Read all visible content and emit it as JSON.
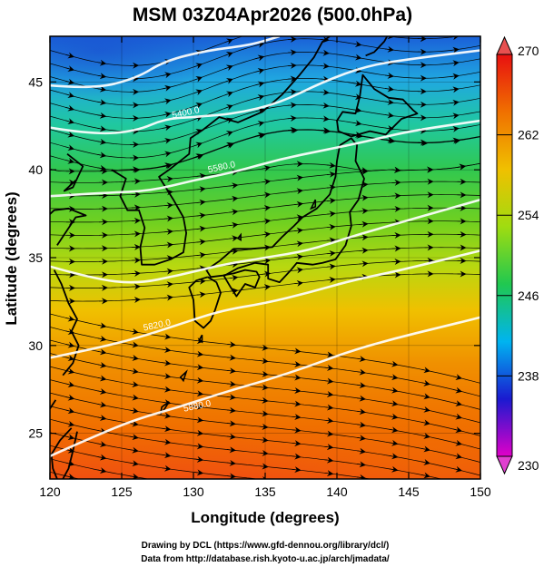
{
  "title": "MSM 03Z04Apr2026 (500.0hPa)",
  "xlabel": "Longitude (degrees)",
  "ylabel": "Latitude  (degrees)",
  "x_ticks": [
    120,
    125,
    130,
    135,
    140,
    145,
    150
  ],
  "y_ticks": [
    25,
    30,
    35,
    40,
    45
  ],
  "x_range": [
    120,
    150
  ],
  "y_range": [
    22.4,
    47.6
  ],
  "colorbar": {
    "ticks": [
      230,
      238,
      246,
      254,
      262,
      270
    ],
    "range": [
      230,
      270
    ],
    "colors": [
      "#e000c8",
      "#1a1ad0",
      "#00b4f0",
      "#20c850",
      "#a0dc10",
      "#f0c000",
      "#f07000",
      "#e81010"
    ]
  },
  "contour_labels": [
    {
      "text": "5400.0",
      "lon": 129.5,
      "lat": 43.1
    },
    {
      "text": "5580.0",
      "lon": 132.0,
      "lat": 40.0
    },
    {
      "text": "5820.0",
      "lon": 127.5,
      "lat": 31.0
    },
    {
      "text": "5880.0",
      "lon": 130.3,
      "lat": 26.4
    }
  ],
  "contours": [
    [
      [
        120,
        44.8
      ],
      [
        123,
        44.6
      ],
      [
        126,
        45.2
      ],
      [
        128,
        46.2
      ],
      [
        131,
        46.8
      ],
      [
        134,
        47.1
      ],
      [
        136,
        47.6
      ]
    ],
    [
      [
        120,
        42.4
      ],
      [
        123,
        42.0
      ],
      [
        126,
        42.2
      ],
      [
        128,
        42.9
      ],
      [
        130,
        43.0
      ],
      [
        133,
        43.2
      ],
      [
        136,
        43.8
      ],
      [
        139,
        45.0
      ],
      [
        142,
        45.9
      ],
      [
        145,
        46.3
      ],
      [
        150,
        46.8
      ]
    ],
    [
      [
        120,
        38.5
      ],
      [
        124,
        38.7
      ],
      [
        127,
        38.8
      ],
      [
        130,
        39.4
      ],
      [
        133,
        39.9
      ],
      [
        136,
        40.6
      ],
      [
        139,
        41.1
      ],
      [
        142,
        41.6
      ],
      [
        145,
        42.2
      ],
      [
        150,
        42.8
      ]
    ],
    [
      [
        120,
        34.5
      ],
      [
        123,
        33.8
      ],
      [
        126,
        33.5
      ],
      [
        129,
        34.0
      ],
      [
        132,
        34.6
      ],
      [
        135,
        35.0
      ],
      [
        138,
        35.4
      ],
      [
        141,
        36.2
      ],
      [
        144,
        36.9
      ],
      [
        147,
        37.6
      ],
      [
        150,
        38.3
      ]
    ],
    [
      [
        120,
        29.3
      ],
      [
        123,
        29.8
      ],
      [
        126,
        30.4
      ],
      [
        129,
        31.2
      ],
      [
        132,
        32.0
      ],
      [
        135,
        32.4
      ],
      [
        138,
        33.0
      ],
      [
        141,
        33.7
      ],
      [
        144,
        34.2
      ],
      [
        147,
        34.8
      ],
      [
        150,
        35.4
      ]
    ],
    [
      [
        120,
        23.7
      ],
      [
        123,
        24.8
      ],
      [
        126,
        25.8
      ],
      [
        129,
        26.5
      ],
      [
        132,
        27.3
      ],
      [
        135,
        28.0
      ],
      [
        138,
        28.8
      ],
      [
        141,
        29.7
      ],
      [
        144,
        30.4
      ],
      [
        147,
        31.0
      ],
      [
        150,
        31.6
      ]
    ]
  ],
  "coastline": [
    [
      [
        140.2,
        41.4
      ],
      [
        141.0,
        41.8
      ],
      [
        141.4,
        41.4
      ],
      [
        141.3,
        40.5
      ],
      [
        141.9,
        39.5
      ],
      [
        141.5,
        38.3
      ],
      [
        140.9,
        37.6
      ],
      [
        141.0,
        36.8
      ],
      [
        140.6,
        35.7
      ],
      [
        139.9,
        34.9
      ],
      [
        139.0,
        34.7
      ],
      [
        138.3,
        34.6
      ],
      [
        137.2,
        34.7
      ],
      [
        136.8,
        34.3
      ],
      [
        136.0,
        33.6
      ],
      [
        135.2,
        33.8
      ],
      [
        135.2,
        34.6
      ],
      [
        134.3,
        34.7
      ],
      [
        133.1,
        34.4
      ],
      [
        132.2,
        34.0
      ],
      [
        131.2,
        33.9
      ],
      [
        130.9,
        34.3
      ],
      [
        131.8,
        34.8
      ],
      [
        132.8,
        35.5
      ],
      [
        134.0,
        35.5
      ],
      [
        135.5,
        35.6
      ],
      [
        136.2,
        36.2
      ],
      [
        137.0,
        36.8
      ],
      [
        137.6,
        37.3
      ],
      [
        138.6,
        37.8
      ],
      [
        139.5,
        38.6
      ],
      [
        139.9,
        39.6
      ],
      [
        140.0,
        40.5
      ],
      [
        140.2,
        41.4
      ]
    ],
    [
      [
        141.0,
        41.9
      ],
      [
        140.1,
        42.2
      ],
      [
        140.0,
        42.8
      ],
      [
        140.4,
        43.3
      ],
      [
        141.3,
        43.2
      ],
      [
        141.6,
        44.2
      ],
      [
        141.8,
        45.4
      ],
      [
        142.6,
        44.6
      ],
      [
        143.6,
        44.1
      ],
      [
        144.6,
        44.0
      ],
      [
        145.3,
        43.4
      ],
      [
        145.6,
        43.2
      ],
      [
        144.5,
        42.9
      ],
      [
        143.4,
        42.0
      ],
      [
        142.3,
        42.2
      ],
      [
        141.0,
        41.9
      ]
    ],
    [
      [
        131.0,
        33.9
      ],
      [
        130.2,
        33.7
      ],
      [
        129.7,
        33.3
      ],
      [
        130.0,
        32.6
      ],
      [
        130.1,
        31.4
      ],
      [
        130.7,
        31.0
      ],
      [
        131.2,
        31.4
      ],
      [
        131.5,
        32.0
      ],
      [
        131.9,
        33.0
      ],
      [
        131.6,
        33.6
      ],
      [
        131.0,
        33.9
      ]
    ],
    [
      [
        132.1,
        34.0
      ],
      [
        132.6,
        33.3
      ],
      [
        133.0,
        32.8
      ],
      [
        133.6,
        33.5
      ],
      [
        134.3,
        33.3
      ],
      [
        134.6,
        33.9
      ],
      [
        134.4,
        34.2
      ],
      [
        133.6,
        34.3
      ],
      [
        132.8,
        34.1
      ],
      [
        132.1,
        34.0
      ]
    ],
    [
      [
        120.5,
        35.7
      ],
      [
        121.8,
        37.3
      ],
      [
        122.5,
        37.4
      ],
      [
        121.3,
        37.8
      ],
      [
        120.3,
        37.7
      ],
      [
        119.5,
        37.1
      ]
    ],
    [
      [
        121.2,
        40.9
      ],
      [
        122.3,
        40.2
      ],
      [
        121.6,
        39.0
      ],
      [
        121.0,
        38.8
      ],
      [
        121.8,
        39.4
      ]
    ],
    [
      [
        124.3,
        40.0
      ],
      [
        125.3,
        39.5
      ],
      [
        124.9,
        38.5
      ],
      [
        125.4,
        37.7
      ],
      [
        126.2,
        37.7
      ],
      [
        126.6,
        36.7
      ],
      [
        126.3,
        35.6
      ],
      [
        126.4,
        34.6
      ],
      [
        127.3,
        34.6
      ],
      [
        128.4,
        34.9
      ],
      [
        129.3,
        35.3
      ],
      [
        129.5,
        36.4
      ],
      [
        129.3,
        37.3
      ],
      [
        128.6,
        38.3
      ],
      [
        127.6,
        39.6
      ],
      [
        128.3,
        40.0
      ],
      [
        129.7,
        40.9
      ],
      [
        129.8,
        41.8
      ],
      [
        130.7,
        42.3
      ]
    ],
    [
      [
        130.7,
        42.3
      ],
      [
        131.8,
        43.0
      ],
      [
        133.1,
        42.7
      ],
      [
        134.8,
        43.3
      ],
      [
        136.2,
        44.3
      ],
      [
        137.4,
        45.4
      ],
      [
        138.4,
        46.4
      ],
      [
        139.0,
        47.3
      ],
      [
        139.5,
        47.6
      ]
    ],
    [
      [
        142.0,
        46.5
      ],
      [
        142.6,
        46.7
      ],
      [
        143.3,
        47.3
      ],
      [
        143.5,
        47.6
      ]
    ],
    [
      [
        121.9,
        25.1
      ],
      [
        121.6,
        24.0
      ],
      [
        121.3,
        23.0
      ],
      [
        120.9,
        22.4
      ]
    ],
    [
      [
        120.5,
        22.4
      ],
      [
        120.2,
        23.0
      ],
      [
        120.1,
        23.8
      ],
      [
        120.7,
        24.6
      ],
      [
        121.5,
        25.3
      ]
    ],
    [
      [
        120.4,
        26.9
      ],
      [
        120.0,
        26.4
      ],
      [
        119.5,
        25.8
      ],
      [
        119.0,
        25.2
      ]
    ],
    [
      [
        120.9,
        28.3
      ],
      [
        121.6,
        29.0
      ],
      [
        122.0,
        30.0
      ],
      [
        121.5,
        30.8
      ],
      [
        121.9,
        31.5
      ],
      [
        121.3,
        32.4
      ],
      [
        120.8,
        33.5
      ],
      [
        120.3,
        34.3
      ]
    ]
  ],
  "islands": [
    [
      [
        128.3,
        26.8
      ],
      [
        127.8,
        26.5
      ],
      [
        127.7,
        26.1
      ],
      [
        128.0,
        26.4
      ],
      [
        128.3,
        26.8
      ]
    ],
    [
      [
        129.5,
        28.5
      ],
      [
        129.1,
        28.2
      ],
      [
        129.3,
        28.0
      ],
      [
        129.5,
        28.5
      ]
    ],
    [
      [
        130.6,
        30.6
      ],
      [
        130.4,
        30.3
      ],
      [
        130.6,
        30.2
      ],
      [
        130.6,
        30.6
      ]
    ],
    [
      [
        138.5,
        38.3
      ],
      [
        138.2,
        37.8
      ],
      [
        138.5,
        37.9
      ],
      [
        138.5,
        38.3
      ]
    ],
    [
      [
        133.3,
        36.3
      ],
      [
        133.1,
        36.1
      ],
      [
        133.3,
        36.0
      ],
      [
        133.3,
        36.3
      ]
    ]
  ],
  "credits": {
    "line1": "Drawing by DCL (https://www.gfd-dennou.org/library/dcl/)",
    "line2": "Data from http://database.rish.kyoto-u.ac.jp/arch/jmadata/"
  }
}
